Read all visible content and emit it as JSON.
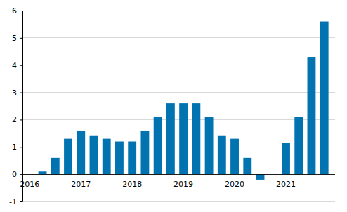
{
  "chart_data": {
    "type": "bar",
    "categories": [
      "2016",
      null,
      null,
      null,
      "2017",
      null,
      null,
      null,
      "2018",
      null,
      null,
      null,
      "2019",
      null,
      null,
      null,
      "2020",
      null,
      null,
      null,
      "2021",
      null,
      null,
      null
    ],
    "values": [
      0,
      0.1,
      0.6,
      1.3,
      1.6,
      1.4,
      1.3,
      1.2,
      1.2,
      1.6,
      2.1,
      2.6,
      2.6,
      2.6,
      2.1,
      1.4,
      1.3,
      0.6,
      -0.2,
      0,
      1.15,
      2.1,
      4.3,
      5.6
    ],
    "color": "#0073b0",
    "ylim": [
      -1,
      6
    ],
    "yticks": [
      -1,
      0,
      1,
      2,
      3,
      4,
      5,
      6
    ],
    "grid": true
  }
}
